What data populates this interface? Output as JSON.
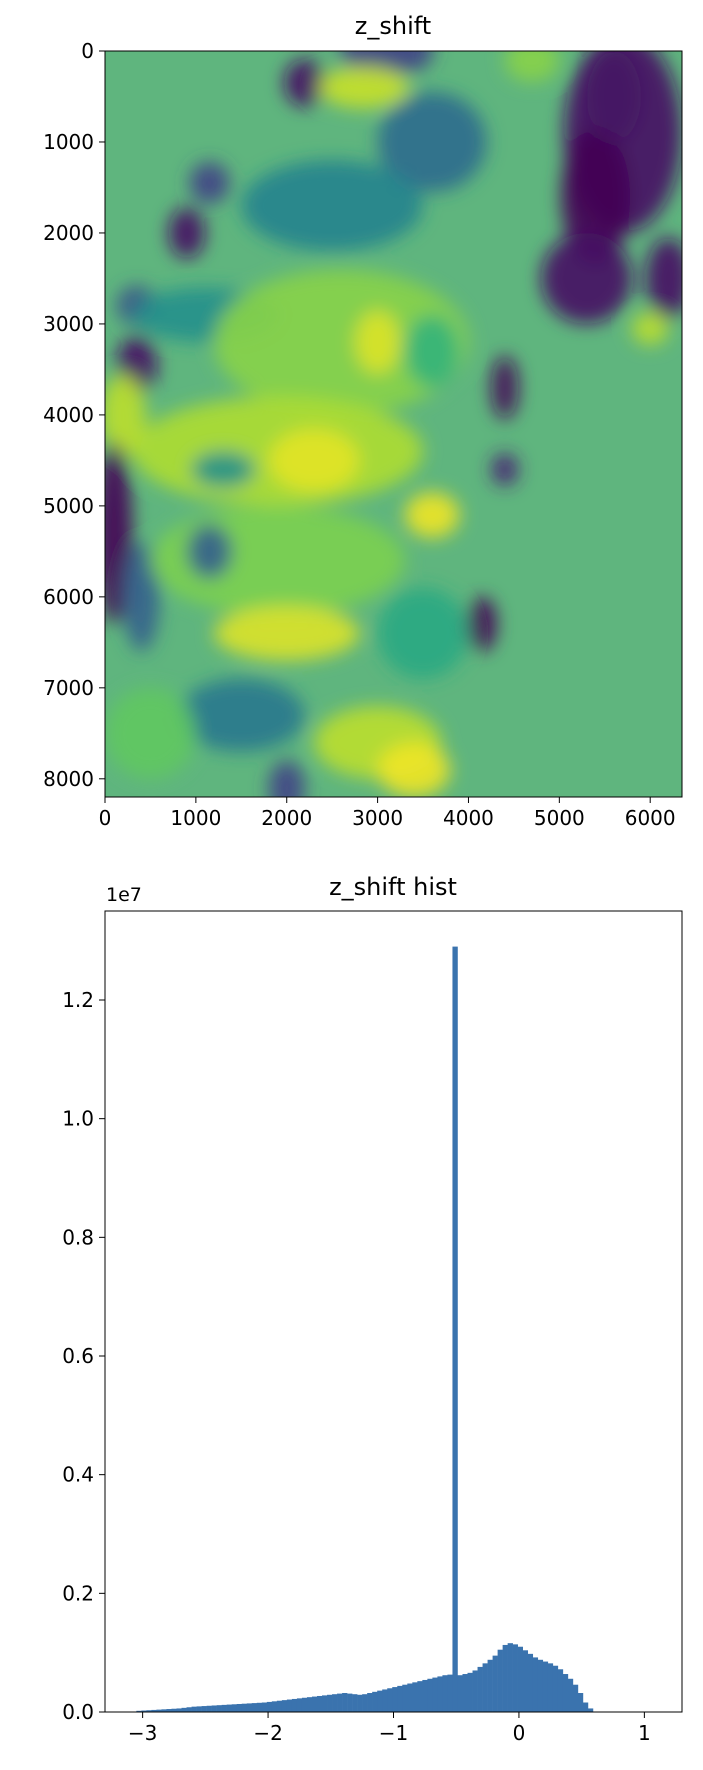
{
  "chart_data": [
    {
      "type": "heatmap",
      "title": "z_shift",
      "xlabel": "",
      "ylabel": "",
      "x_ticks": [
        "0",
        "1000",
        "2000",
        "3000",
        "4000",
        "5000",
        "6000"
      ],
      "y_ticks": [
        "0",
        "1000",
        "2000",
        "3000",
        "4000",
        "5000",
        "6000",
        "7000",
        "8000"
      ],
      "xlim": [
        0,
        6350
      ],
      "ylim": [
        8200,
        0
      ],
      "colormap": "viridis",
      "background_color": "#5fb57e",
      "blobs": [
        {
          "x": 3100,
          "y": 0,
          "rx": 520,
          "ry": 280,
          "v": 0.2
        },
        {
          "x": 2200,
          "y": 350,
          "rx": 230,
          "ry": 260,
          "v": 0.05
        },
        {
          "x": 2850,
          "y": 400,
          "rx": 500,
          "ry": 230,
          "v": 0.92
        },
        {
          "x": 4700,
          "y": 100,
          "rx": 300,
          "ry": 240,
          "v": 0.82
        },
        {
          "x": 3600,
          "y": 1000,
          "rx": 600,
          "ry": 550,
          "v": 0.35
        },
        {
          "x": 5700,
          "y": 900,
          "rx": 650,
          "ry": 1100,
          "v": 0.05
        },
        {
          "x": 5400,
          "y": 1600,
          "rx": 380,
          "ry": 750,
          "v": 0.0
        },
        {
          "x": 5600,
          "y": 500,
          "rx": 300,
          "ry": 500,
          "v": 0.05
        },
        {
          "x": 5300,
          "y": 2500,
          "rx": 500,
          "ry": 500,
          "v": 0.05
        },
        {
          "x": 6200,
          "y": 2500,
          "rx": 250,
          "ry": 450,
          "v": 0.05
        },
        {
          "x": 6000,
          "y": 3050,
          "rx": 200,
          "ry": 180,
          "v": 0.9
        },
        {
          "x": 1150,
          "y": 1450,
          "rx": 220,
          "ry": 230,
          "v": 0.2
        },
        {
          "x": 900,
          "y": 2000,
          "rx": 200,
          "ry": 280,
          "v": 0.05
        },
        {
          "x": 2500,
          "y": 1700,
          "rx": 1000,
          "ry": 500,
          "v": 0.45
        },
        {
          "x": 350,
          "y": 2800,
          "rx": 220,
          "ry": 220,
          "v": 0.25
        },
        {
          "x": 350,
          "y": 3450,
          "rx": 220,
          "ry": 320,
          "v": 0.05
        },
        {
          "x": 1100,
          "y": 2900,
          "rx": 800,
          "ry": 300,
          "v": 0.5
        },
        {
          "x": 2600,
          "y": 3200,
          "rx": 1400,
          "ry": 800,
          "v": 0.82
        },
        {
          "x": 3000,
          "y": 3200,
          "rx": 250,
          "ry": 350,
          "v": 0.95
        },
        {
          "x": 3600,
          "y": 3300,
          "rx": 300,
          "ry": 400,
          "v": 0.65
        },
        {
          "x": 1900,
          "y": 4400,
          "rx": 1600,
          "ry": 600,
          "v": 0.88
        },
        {
          "x": 2300,
          "y": 4500,
          "rx": 500,
          "ry": 350,
          "v": 0.96
        },
        {
          "x": 1300,
          "y": 4600,
          "rx": 350,
          "ry": 200,
          "v": 0.5
        },
        {
          "x": 200,
          "y": 4000,
          "rx": 250,
          "ry": 450,
          "v": 0.9
        },
        {
          "x": 4400,
          "y": 3700,
          "rx": 150,
          "ry": 350,
          "v": 0.02
        },
        {
          "x": 4400,
          "y": 4600,
          "rx": 150,
          "ry": 180,
          "v": 0.1
        },
        {
          "x": 100,
          "y": 5300,
          "rx": 200,
          "ry": 1000,
          "v": 0.0
        },
        {
          "x": 400,
          "y": 6000,
          "rx": 200,
          "ry": 600,
          "v": 0.3
        },
        {
          "x": 1900,
          "y": 5600,
          "rx": 1400,
          "ry": 600,
          "v": 0.8
        },
        {
          "x": 3600,
          "y": 5100,
          "rx": 300,
          "ry": 250,
          "v": 0.98
        },
        {
          "x": 1150,
          "y": 5500,
          "rx": 250,
          "ry": 300,
          "v": 0.3
        },
        {
          "x": 4150,
          "y": 6300,
          "rx": 160,
          "ry": 300,
          "v": 0.0
        },
        {
          "x": 2000,
          "y": 6400,
          "rx": 800,
          "ry": 300,
          "v": 0.95
        },
        {
          "x": 3500,
          "y": 6400,
          "rx": 500,
          "ry": 500,
          "v": 0.6
        },
        {
          "x": 1500,
          "y": 7300,
          "rx": 700,
          "ry": 400,
          "v": 0.4
        },
        {
          "x": 500,
          "y": 7500,
          "rx": 500,
          "ry": 500,
          "v": 0.75
        },
        {
          "x": 3000,
          "y": 7600,
          "rx": 700,
          "ry": 400,
          "v": 0.9
        },
        {
          "x": 2000,
          "y": 8100,
          "rx": 200,
          "ry": 300,
          "v": 0.2
        },
        {
          "x": 3400,
          "y": 7900,
          "rx": 400,
          "ry": 300,
          "v": 0.98
        }
      ]
    },
    {
      "type": "bar",
      "title": "z_shift hist",
      "xlabel": "",
      "ylabel": "",
      "scale_offset": "1e7",
      "x_ticks": [
        "−3",
        "−2",
        "−1",
        "0",
        "1"
      ],
      "y_ticks": [
        "0.0",
        "0.2",
        "0.4",
        "0.6",
        "0.8",
        "1.0",
        "1.2"
      ],
      "xlim": [
        -3.3,
        1.3
      ],
      "ylim": [
        0,
        13500000
      ],
      "bar_color": "#3a73ae",
      "bins_x": [
        -3.05,
        0.95
      ],
      "bin_count": 100,
      "values": [
        20000,
        25000,
        30000,
        35000,
        40000,
        45000,
        50000,
        55000,
        60000,
        70000,
        80000,
        90000,
        95000,
        100000,
        105000,
        110000,
        115000,
        120000,
        125000,
        130000,
        135000,
        140000,
        145000,
        150000,
        155000,
        160000,
        170000,
        180000,
        190000,
        200000,
        210000,
        220000,
        230000,
        240000,
        250000,
        260000,
        270000,
        280000,
        290000,
        300000,
        310000,
        320000,
        310000,
        300000,
        290000,
        300000,
        320000,
        340000,
        360000,
        380000,
        400000,
        420000,
        440000,
        460000,
        480000,
        500000,
        520000,
        540000,
        560000,
        580000,
        600000,
        620000,
        630000,
        12900000,
        620000,
        640000,
        660000,
        700000,
        760000,
        820000,
        880000,
        950000,
        1050000,
        1130000,
        1160000,
        1140000,
        1100000,
        1040000,
        980000,
        920000,
        880000,
        850000,
        820000,
        780000,
        720000,
        640000,
        560000,
        460000,
        320000,
        160000,
        60000,
        0,
        0,
        0,
        0,
        0,
        0,
        0,
        0,
        0
      ]
    }
  ]
}
